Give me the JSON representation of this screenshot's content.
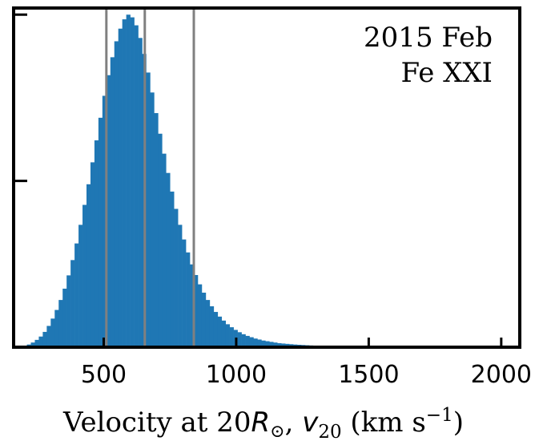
{
  "chart_data": {
    "type": "bar",
    "title": "",
    "annotations": [
      "2015 Feb",
      "Fe XXI"
    ],
    "xlabel": {
      "pre": "Velocity at 20",
      "r_sym": "R",
      "sun": "⊙",
      "sep": ", ",
      "v_sym": "v",
      "v_sub": "20",
      "units_open": " (km s",
      "units_exp": "−1",
      "units_close": ")"
    },
    "ylabel": "",
    "xlim": [
      160,
      2070
    ],
    "ylim": [
      0,
      1.02
    ],
    "x_ticks": [
      500,
      1000,
      1500,
      2000
    ],
    "x_tick_labels": [
      "500",
      "1000",
      "1500",
      "2000"
    ],
    "y_ticks": [
      0.5,
      1.0
    ],
    "grid": false,
    "bar_color": "#1f77b4",
    "reference_line_color": "#808080",
    "reference_lines_x": [
      510,
      655,
      840
    ],
    "bin_width": 15,
    "bin_start": 195,
    "values": [
      0.004,
      0.008,
      0.014,
      0.022,
      0.032,
      0.046,
      0.064,
      0.086,
      0.112,
      0.142,
      0.176,
      0.216,
      0.262,
      0.312,
      0.368,
      0.428,
      0.49,
      0.556,
      0.622,
      0.69,
      0.756,
      0.818,
      0.872,
      0.92,
      0.958,
      0.986,
      1.0,
      0.992,
      0.968,
      0.93,
      0.882,
      0.826,
      0.766,
      0.704,
      0.642,
      0.582,
      0.524,
      0.468,
      0.416,
      0.368,
      0.324,
      0.285,
      0.249,
      0.217,
      0.189,
      0.164,
      0.142,
      0.123,
      0.106,
      0.092,
      0.08,
      0.069,
      0.06,
      0.052,
      0.045,
      0.039,
      0.034,
      0.03,
      0.026,
      0.023,
      0.02,
      0.018,
      0.016,
      0.014,
      0.012,
      0.011,
      0.01,
      0.009,
      0.008,
      0.0072,
      0.0065,
      0.0058,
      0.0052,
      0.0047,
      0.0042,
      0.0038,
      0.0034,
      0.0031,
      0.0028,
      0.0025,
      0.0023,
      0.0021,
      0.0019,
      0.0017,
      0.0015,
      0.0014,
      0.0013,
      0.0012,
      0.0011,
      0.001,
      0.0009,
      0.0008,
      0.0007,
      0.0006,
      0.0006,
      0.0005,
      0.0005,
      0.0004,
      0.0004,
      0.0003,
      0.0003,
      0.0003,
      0.0002,
      0.0002,
      0.0002,
      0.0002,
      0.0001,
      0.0001,
      0.0001,
      0.0001,
      0.0001,
      0.0001,
      0.0001,
      0.0001,
      0.0001,
      0.0001,
      0.0001,
      0.0001,
      0.0001,
      0.0001,
      0.0001,
      0.0001
    ]
  }
}
